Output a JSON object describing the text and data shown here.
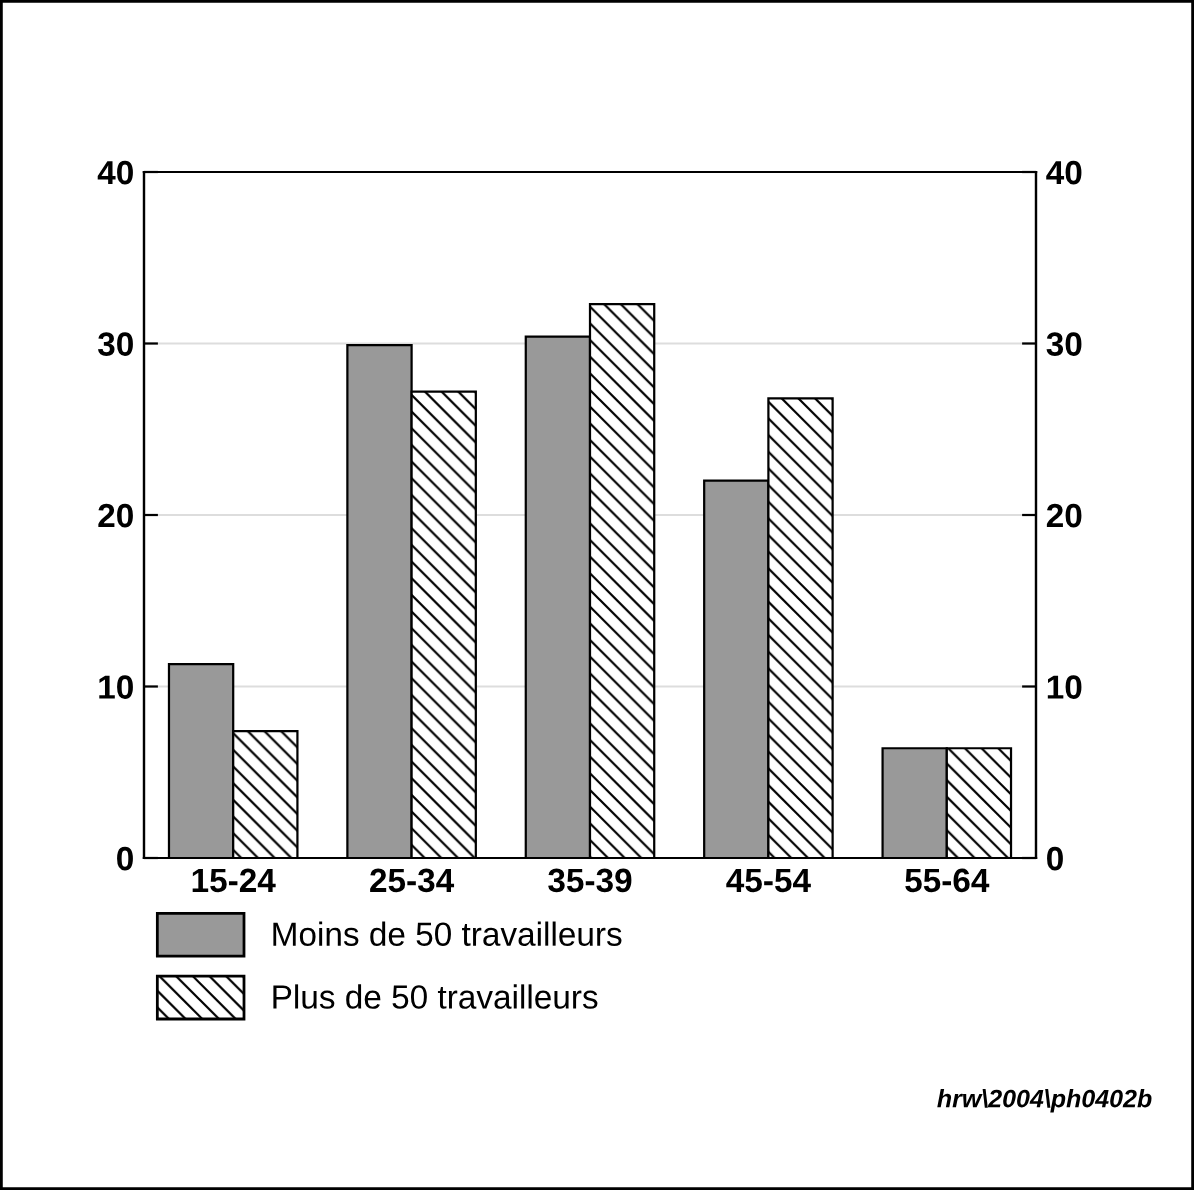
{
  "chart_data": {
    "type": "bar",
    "categories": [
      "15-24",
      "25-34",
      "35-39",
      "45-54",
      "55-64"
    ],
    "series": [
      {
        "name": "Moins de 50 travailleurs",
        "color": "#999999",
        "values": [
          11.3,
          29.9,
          30.4,
          22.0,
          6.4
        ]
      },
      {
        "name": "Plus de 50 travailleurs",
        "color": "#000000",
        "values": [
          7.4,
          27.2,
          32.3,
          26.8,
          6.4
        ]
      }
    ],
    "ylim": [
      0,
      40
    ],
    "yticks": [
      0,
      10,
      20,
      30,
      40
    ],
    "y2lim": [
      0,
      40
    ],
    "y2ticks": [
      0,
      10,
      20,
      30,
      40
    ],
    "grid": "y",
    "legend": "bottom left",
    "annotations": [
      "hrw\\2004\\ph0402b"
    ]
  }
}
